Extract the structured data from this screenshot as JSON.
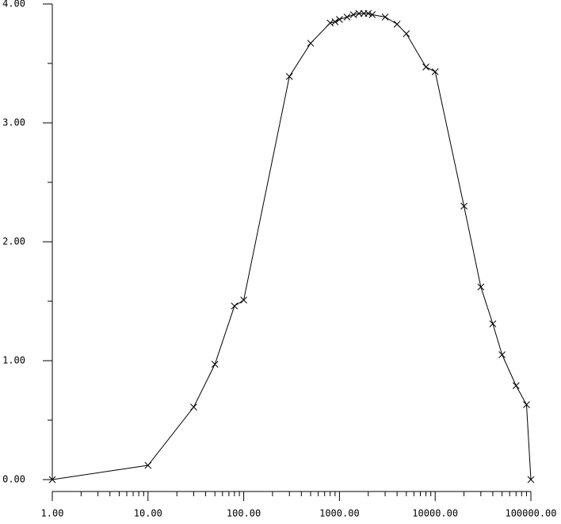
{
  "chart_data": {
    "type": "line",
    "x_scale": "log",
    "marker": "x",
    "color": "#000000",
    "x": [
      1,
      10,
      30,
      50,
      80,
      100,
      300,
      500,
      800,
      900,
      1000,
      1200,
      1400,
      1600,
      1800,
      2000,
      2200,
      3000,
      4000,
      5000,
      8000,
      10000,
      20000,
      30000,
      40000,
      50000,
      70000,
      90000,
      100000
    ],
    "values": [
      0,
      0.12,
      0.61,
      0.97,
      1.46,
      1.51,
      3.39,
      3.67,
      3.84,
      3.85,
      3.87,
      3.89,
      3.91,
      3.92,
      3.92,
      3.92,
      3.91,
      3.89,
      3.83,
      3.75,
      3.47,
      3.43,
      2.3,
      1.62,
      1.31,
      1.05,
      0.79,
      0.63,
      0
    ],
    "xlim": [
      1,
      100000
    ],
    "ylim": [
      0,
      4
    ],
    "xticks": [
      {
        "value": 1,
        "label": "1.00"
      },
      {
        "value": 10,
        "label": "10.00"
      },
      {
        "value": 100,
        "label": "100.00"
      },
      {
        "value": 1000,
        "label": "1000.00"
      },
      {
        "value": 10000,
        "label": "10000.00"
      },
      {
        "value": 100000,
        "label": "100000.00"
      }
    ],
    "yticks": [
      {
        "value": 0,
        "label": "0.00"
      },
      {
        "value": 1,
        "label": "1.00"
      },
      {
        "value": 2,
        "label": "2.00"
      },
      {
        "value": 3,
        "label": "3.00"
      },
      {
        "value": 4,
        "label": "4.00"
      }
    ]
  }
}
